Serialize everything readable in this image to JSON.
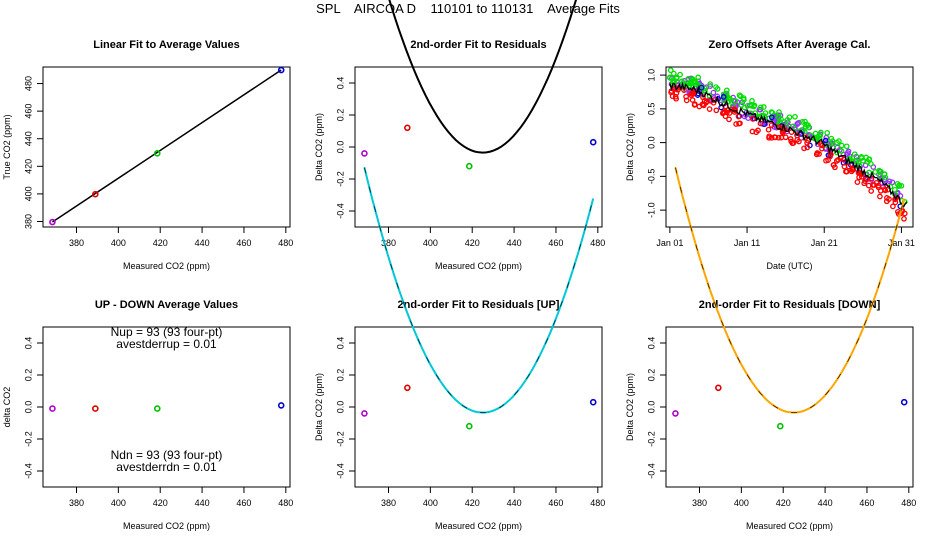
{
  "page": {
    "title": "SPL    AIRCOA D    110101 to 110131    Average Fits"
  },
  "chart_data": [
    {
      "id": "linear",
      "type": "scatter",
      "title": "Linear Fit to Average Values",
      "xlabel": "Measured CO2 (ppm)",
      "ylabel": "True CO2 (ppm)",
      "xlim": [
        364,
        482
      ],
      "ylim": [
        376,
        492
      ],
      "xticks": [
        380,
        400,
        420,
        440,
        460,
        480
      ],
      "yticks": [
        380,
        400,
        420,
        440,
        460,
        480
      ],
      "points": [
        {
          "x": 368.5,
          "y": 379.6,
          "color": "#b000d0"
        },
        {
          "x": 389.0,
          "y": 399.8,
          "color": "#e00000"
        },
        {
          "x": 418.6,
          "y": 429.4,
          "color": "#00c000"
        },
        {
          "x": 477.8,
          "y": 489.8,
          "color": "#0000d0"
        }
      ],
      "line": {
        "x": [
          368.5,
          477.8
        ],
        "y": [
          379.6,
          489.8
        ],
        "color": "#000000"
      }
    },
    {
      "id": "resid",
      "type": "scatter",
      "title": "2nd-order Fit to Residuals",
      "xlabel": "Measured CO2 (ppm)",
      "ylabel": "Delta CO2 (ppm)",
      "xlim": [
        364,
        482
      ],
      "ylim": [
        -0.5,
        0.5
      ],
      "xticks": [
        380,
        400,
        420,
        440,
        460,
        480
      ],
      "yticks": [
        -0.4,
        -0.2,
        0.0,
        0.2,
        0.4
      ],
      "ytick_labels": [
        "-0.4",
        "-0.2",
        "0.0",
        "0.2",
        "0.4"
      ],
      "points": [
        {
          "x": 368.5,
          "y": -0.04,
          "color": "#b000d0"
        },
        {
          "x": 389.0,
          "y": 0.12,
          "color": "#e00000"
        },
        {
          "x": 418.6,
          "y": -0.12,
          "color": "#00c000"
        },
        {
          "x": 477.8,
          "y": 0.03,
          "color": "#0000d0"
        }
      ],
      "curve": {
        "x0": 425,
        "y0": -0.035,
        "a": 8e-06,
        "x": [
          368.5,
          477.8
        ],
        "color": "#000000"
      }
    },
    {
      "id": "zero",
      "type": "line",
      "title": "Zero Offsets After Average Cal.",
      "xlabel": "Date (UTC)",
      "ylabel": "Delta CO2 (ppm)",
      "xlim": [
        0,
        32
      ],
      "ylim": [
        -1.25,
        1.12
      ],
      "xticks": [
        0.5,
        10.5,
        20.5,
        30.5
      ],
      "xtick_labels": [
        "Jan 01",
        "Jan 11",
        "Jan 21",
        "Jan 31"
      ],
      "yticks": [
        -1.0,
        -0.5,
        0.0,
        0.5,
        1.0
      ],
      "ytick_labels": [
        "-1.0",
        "-0.5",
        "0.0",
        "0.5",
        "1.0"
      ],
      "series": [
        {
          "color": "#9b30ff",
          "offset": 0.05
        },
        {
          "color": "#00e000",
          "offset": 0.12
        },
        {
          "color": "#0000e0",
          "offset": 0.0
        },
        {
          "color": "#ff0000",
          "offset": -0.12
        },
        {
          "color": "#000000",
          "offset": 0.0
        }
      ],
      "trend": {
        "x": [
          0.5,
          4,
          8,
          12,
          16,
          20,
          24,
          28,
          31
        ],
        "y": [
          0.85,
          0.78,
          0.55,
          0.35,
          0.2,
          0.0,
          -0.3,
          -0.6,
          -0.92
        ]
      }
    },
    {
      "id": "updown",
      "type": "scatter",
      "title": "UP - DOWN Average Values",
      "xlabel": "Measured CO2 (ppm)",
      "ylabel": "delta CO2",
      "xlim": [
        364,
        482
      ],
      "ylim": [
        -0.5,
        0.5
      ],
      "xticks": [
        380,
        400,
        420,
        440,
        460,
        480
      ],
      "yticks": [
        -0.4,
        -0.2,
        0.0,
        0.2,
        0.4
      ],
      "ytick_labels": [
        "-0.4",
        "-0.2",
        "0.0",
        "0.2",
        "0.4"
      ],
      "points": [
        {
          "x": 368.5,
          "y": -0.01,
          "color": "#b000d0"
        },
        {
          "x": 389.0,
          "y": -0.01,
          "color": "#e00000"
        },
        {
          "x": 418.6,
          "y": -0.01,
          "color": "#00c000"
        },
        {
          "x": 477.8,
          "y": 0.01,
          "color": "#0000d0"
        }
      ],
      "annotations": [
        "Nup = 93 (93 four-pt)",
        "avestderrup =  0.01",
        "Ndn = 93 (93 four-pt)",
        "avestderrdn =  0.01"
      ]
    },
    {
      "id": "resid_up",
      "type": "scatter",
      "title": "2nd-order Fit to Residuals [UP]",
      "xlabel": "Measured CO2 (ppm)",
      "ylabel": "Delta CO2 (ppm)",
      "xlim": [
        364,
        482
      ],
      "ylim": [
        -0.5,
        0.5
      ],
      "xticks": [
        380,
        400,
        420,
        440,
        460,
        480
      ],
      "yticks": [
        -0.4,
        -0.2,
        0.0,
        0.2,
        0.4
      ],
      "ytick_labels": [
        "-0.4",
        "-0.2",
        "0.0",
        "0.2",
        "0.4"
      ],
      "points": [
        {
          "x": 368.5,
          "y": -0.04,
          "color": "#b000d0"
        },
        {
          "x": 389.0,
          "y": 0.12,
          "color": "#e00000"
        },
        {
          "x": 418.6,
          "y": -0.12,
          "color": "#00c000"
        },
        {
          "x": 477.8,
          "y": 0.03,
          "color": "#0000d0"
        }
      ],
      "curve": {
        "x0": 425,
        "y0": -0.035,
        "a": 8e-06,
        "x": [
          368.5,
          477.8
        ],
        "color": "#00c8d8"
      }
    },
    {
      "id": "resid_down",
      "type": "scatter",
      "title": "2nd-order Fit to Residuals [DOWN]",
      "xlabel": "Measured CO2 (ppm)",
      "ylabel": "Delta CO2 (ppm)",
      "xlim": [
        364,
        482
      ],
      "ylim": [
        -0.5,
        0.5
      ],
      "xticks": [
        380,
        400,
        420,
        440,
        460,
        480
      ],
      "yticks": [
        -0.4,
        -0.2,
        0.0,
        0.2,
        0.4
      ],
      "ytick_labels": [
        "-0.4",
        "-0.2",
        "0.0",
        "0.2",
        "0.4"
      ],
      "points": [
        {
          "x": 368.5,
          "y": -0.04,
          "color": "#b000d0"
        },
        {
          "x": 389.0,
          "y": 0.12,
          "color": "#e00000"
        },
        {
          "x": 418.6,
          "y": -0.12,
          "color": "#00c000"
        },
        {
          "x": 477.8,
          "y": 0.03,
          "color": "#0000d0"
        }
      ],
      "curve": {
        "x0": 425,
        "y0": -0.035,
        "a": 8e-06,
        "x": [
          368.5,
          477.8
        ],
        "color": "#ffa500"
      }
    }
  ]
}
